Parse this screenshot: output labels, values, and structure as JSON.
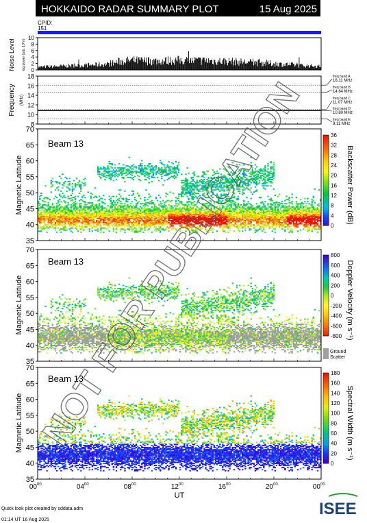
{
  "header": {
    "title": "HOKKAIDO RADAR SUMMARY PLOT",
    "date": "15 Aug 2025",
    "cpid_label": "CPID:",
    "cpid_value": "151"
  },
  "footer": {
    "credit": "Quick look plot created by sddata.adm",
    "timestamp": "01:14 UT 16 Aug 2025",
    "logo_text": "ISEE"
  },
  "watermark": "NOT FOR PUBLICATION",
  "colors": {
    "cpid_bar": "#1a1aff",
    "ground_scatter": "#a0a0a0",
    "title_bg": "#000000",
    "logo_blue": "#1d3f7a",
    "logo_green": "#2e9c3c"
  },
  "chart_data": [
    {
      "type": "bar",
      "name": "noise",
      "ylabel": "Noise Level",
      "ylabel_sub": "log power (arb. 10^n)",
      "ylim": [
        0,
        10
      ],
      "yticks": [
        "0",
        "2",
        "4",
        "6",
        "8",
        "10"
      ],
      "x_range_hours": [
        0,
        24
      ],
      "profile_hours": [
        0,
        2,
        4,
        6,
        7,
        8,
        10,
        12,
        14,
        16,
        18,
        20,
        22,
        24
      ],
      "profile_values": [
        1.0,
        1.3,
        1.6,
        2.0,
        3.0,
        3.2,
        3.1,
        3.3,
        3.2,
        3.0,
        2.6,
        2.2,
        1.6,
        1.2
      ]
    },
    {
      "type": "line",
      "name": "frequency",
      "ylabel": "Frequency",
      "ylabel_unit": "(MHz)",
      "ylim": [
        8,
        18
      ],
      "yticks": [
        "8",
        "10",
        "12",
        "14",
        "16",
        "18"
      ],
      "bands": [
        {
          "label": "freq band A",
          "value": "16.11 MHz",
          "y": 16.11
        },
        {
          "label": "freq band B",
          "value": "14.64 MHz",
          "y": 14.64
        },
        {
          "label": "freq band C",
          "value": "11.07 MHz",
          "y": 11.07
        },
        {
          "label": "freq band D",
          "value": "10.80 MHz",
          "y": 10.8
        },
        {
          "label": "freq band E",
          "value": "9.11 MHz",
          "y": 9.11
        }
      ],
      "operating_mhz": 10.8
    },
    {
      "type": "heatmap",
      "name": "power",
      "beam_label": "Beam 13",
      "ylabel": "Magnetic Latitude",
      "ylim": [
        35,
        70
      ],
      "yticks": [
        "35",
        "40",
        "45",
        "50",
        "55",
        "60",
        "65",
        "70"
      ],
      "colorbar_label": "Backscatter Power (dB)",
      "colorbar_range": [
        0,
        36
      ],
      "colorbar_ticks": [
        "0",
        "4",
        "8",
        "12",
        "16",
        "20",
        "24",
        "28",
        "32",
        "36"
      ]
    },
    {
      "type": "heatmap",
      "name": "velocity",
      "beam_label": "Beam 13",
      "ylabel": "Magnetic Latitude",
      "ylim": [
        35,
        70
      ],
      "yticks": [
        "35",
        "40",
        "45",
        "50",
        "55",
        "60",
        "65",
        "70"
      ],
      "colorbar_label": "Doppler Velocity (m s⁻¹)",
      "colorbar_range": [
        -800,
        800
      ],
      "colorbar_ticks": [
        "-800",
        "-600",
        "-400",
        "-200",
        "0",
        "200",
        "400",
        "600",
        "800"
      ],
      "ground_scatter_label_1": "Ground",
      "ground_scatter_label_2": "Scatter"
    },
    {
      "type": "heatmap",
      "name": "width",
      "beam_label": "Beam 13",
      "ylabel": "Magnetic Latitude",
      "ylim": [
        35,
        70
      ],
      "yticks": [
        "35",
        "40",
        "45",
        "50",
        "55",
        "60",
        "65",
        "70"
      ],
      "colorbar_label": "Spectral Width (m s⁻¹)",
      "colorbar_range": [
        0,
        180
      ],
      "colorbar_ticks": [
        "0",
        "20",
        "40",
        "60",
        "80",
        "100",
        "120",
        "140",
        "160",
        "180"
      ]
    }
  ],
  "x_axis": {
    "label": "UT",
    "range_hours": [
      0,
      24
    ],
    "ticks": [
      {
        "h": 0,
        "hh": "00",
        "mm": "00"
      },
      {
        "h": 4,
        "hh": "04",
        "mm": "00"
      },
      {
        "h": 8,
        "hh": "08",
        "mm": "00"
      },
      {
        "h": 12,
        "hh": "12",
        "mm": "00"
      },
      {
        "h": 16,
        "hh": "16",
        "mm": "00"
      },
      {
        "h": 20,
        "hh": "20",
        "mm": "00"
      },
      {
        "h": 24,
        "hh": "00",
        "mm": "00"
      }
    ]
  }
}
